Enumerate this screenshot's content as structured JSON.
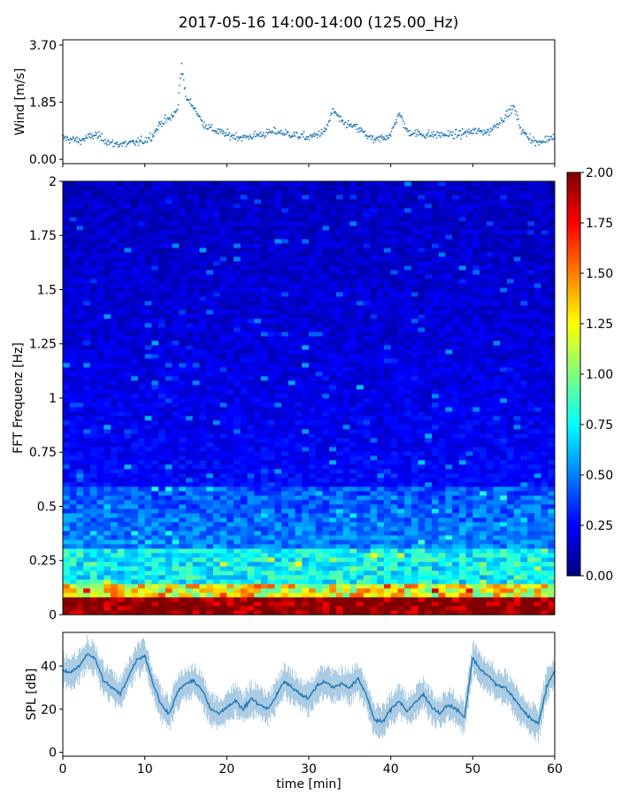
{
  "title": "2017-05-16 14:00-14:00 (125.00_Hz)",
  "chart_data": [
    {
      "id": "wind",
      "type": "scatter",
      "ylabel": "Wind [m/s]",
      "ylim": [
        0,
        3.7
      ],
      "yticks": [
        0.0,
        1.85,
        3.7
      ],
      "ytick_labels": [
        "0.00",
        "1.85",
        "3.70"
      ],
      "xlim": [
        0,
        60
      ],
      "marker_color": "#1f77b4",
      "anchors": {
        "x": [
          0,
          2,
          4,
          6,
          8,
          10,
          11,
          12,
          13,
          14,
          14.5,
          15,
          16,
          17,
          18,
          20,
          22,
          24,
          26,
          28,
          30,
          32,
          33,
          34,
          36,
          38,
          40,
          41,
          42,
          44,
          46,
          48,
          50,
          52,
          54,
          55,
          56,
          58,
          60
        ],
        "y": [
          0.7,
          0.6,
          0.8,
          0.5,
          0.5,
          0.6,
          0.8,
          1.2,
          1.3,
          1.6,
          3.1,
          2.0,
          1.7,
          1.2,
          1.0,
          0.8,
          0.7,
          0.8,
          0.9,
          0.8,
          0.7,
          0.9,
          1.6,
          1.2,
          1.0,
          0.6,
          0.8,
          1.5,
          0.9,
          0.8,
          0.8,
          0.8,
          0.9,
          0.9,
          1.4,
          1.7,
          0.9,
          0.5,
          0.8
        ]
      }
    },
    {
      "id": "spectrogram",
      "type": "heatmap",
      "ylabel": "FFT Frequenz [Hz]",
      "ylim": [
        0,
        2
      ],
      "yticks": [
        0,
        0.25,
        0.5,
        0.75,
        1,
        1.25,
        1.5,
        1.75,
        2
      ],
      "ytick_labels": [
        "0",
        "0.25",
        "0.5",
        "0.75",
        "1",
        "1.25",
        "1.5",
        "1.75",
        "2"
      ],
      "xlim": [
        0,
        60
      ],
      "colormap": "jet",
      "clim": [
        0,
        2
      ],
      "colorbar_ticks": [
        "0.00",
        "0.25",
        "0.50",
        "0.75",
        "1.00",
        "1.25",
        "1.50",
        "1.75",
        "2.00"
      ],
      "colorbar_values": [
        0,
        0.25,
        0.5,
        0.75,
        1.0,
        1.25,
        1.5,
        1.75,
        2.0
      ]
    },
    {
      "id": "spl",
      "type": "line",
      "ylabel": "SPL [dB]",
      "xlabel": "time [min]",
      "ylim": [
        -1,
        57
      ],
      "yticks": [
        0,
        20,
        40
      ],
      "ytick_labels": [
        "0",
        "20",
        "40"
      ],
      "xlim": [
        0,
        60
      ],
      "xticks": [
        0,
        10,
        20,
        30,
        40,
        50,
        60
      ],
      "xtick_labels": [
        "0",
        "10",
        "20",
        "30",
        "40",
        "50",
        "60"
      ],
      "line_color": "#1f77b4",
      "x": [
        0,
        1,
        2,
        3,
        4,
        5,
        6,
        7,
        8,
        9,
        10,
        11,
        12,
        13,
        14,
        15,
        16,
        17,
        18,
        19,
        20,
        21,
        22,
        23,
        24,
        25,
        26,
        27,
        28,
        29,
        30,
        31,
        32,
        33,
        34,
        35,
        36,
        37,
        38,
        39,
        40,
        41,
        42,
        43,
        44,
        45,
        46,
        47,
        48,
        49,
        50,
        51,
        52,
        53,
        54,
        55,
        56,
        57,
        58,
        59,
        60
      ],
      "y": [
        38,
        37,
        40,
        46,
        43,
        33,
        30,
        27,
        35,
        43,
        45,
        32,
        22,
        18,
        28,
        32,
        33,
        29,
        20,
        18,
        21,
        24,
        20,
        25,
        22,
        20,
        26,
        33,
        30,
        27,
        25,
        31,
        33,
        30,
        32,
        30,
        34,
        27,
        15,
        14,
        20,
        24,
        19,
        23,
        27,
        21,
        18,
        22,
        20,
        16,
        44,
        38,
        35,
        31,
        30,
        25,
        20,
        16,
        13,
        30,
        38
      ]
    }
  ]
}
